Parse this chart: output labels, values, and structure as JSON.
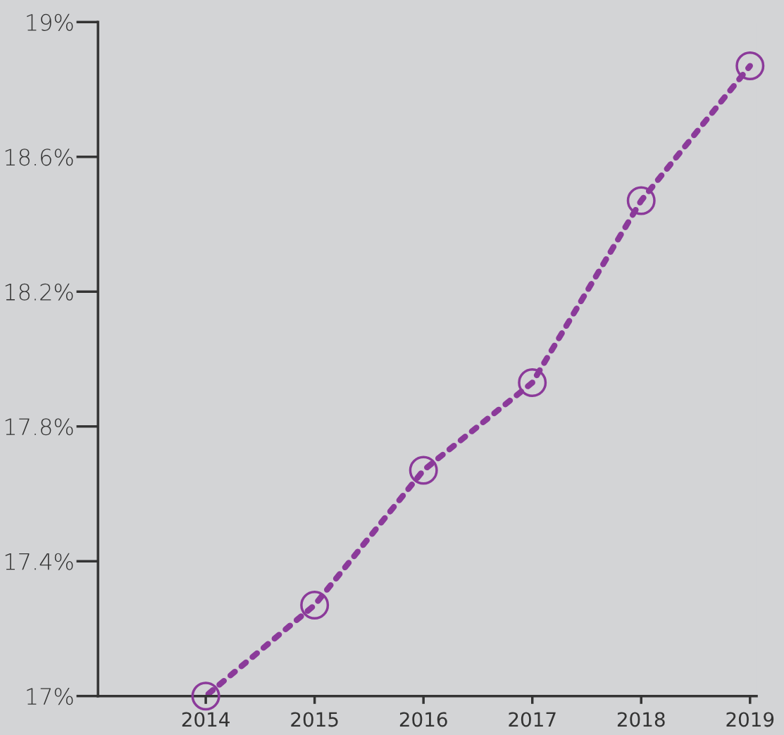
{
  "chart_data": {
    "type": "line",
    "categories": [
      "2014",
      "2015",
      "2016",
      "2017",
      "2018",
      "2019"
    ],
    "series": [
      {
        "color": "#8b3a9a",
        "values": [
          17.0,
          17.27,
          17.67,
          17.93,
          18.47,
          18.87
        ]
      }
    ],
    "ylim": [
      17,
      19
    ],
    "yticks": [
      {
        "value": 17,
        "label": "17%"
      },
      {
        "value": 17.4,
        "label": "17.4%"
      },
      {
        "value": 17.8,
        "label": "17.8%"
      },
      {
        "value": 18.2,
        "label": "18.2%"
      },
      {
        "value": 18.6,
        "label": "18.6%"
      },
      {
        "value": 19,
        "label": "19%"
      }
    ],
    "marker": "circle",
    "line_style": "dashed",
    "grid": false,
    "legend": false
  }
}
